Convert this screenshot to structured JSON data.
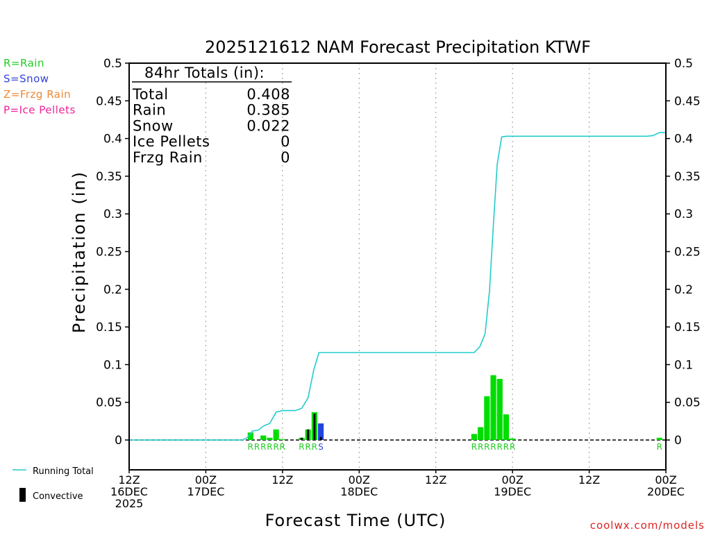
{
  "chart_data": {
    "type": "bar",
    "title": "2025121612 NAM Forecast Precipitation KTWF",
    "ylabel": "Precipitation (in)",
    "xlabel": "Forecast Time (UTC)",
    "ylim": [
      -0.04,
      0.5
    ],
    "xlim_hours": [
      0,
      84
    ],
    "yticks": [
      {
        "value": 0,
        "label": "0"
      },
      {
        "value": 0.05,
        "label": "0.05"
      },
      {
        "value": 0.1,
        "label": "0.1"
      },
      {
        "value": 0.15,
        "label": "0.15"
      },
      {
        "value": 0.2,
        "label": "0.2"
      },
      {
        "value": 0.25,
        "label": "0.25"
      },
      {
        "value": 0.3,
        "label": "0.3"
      },
      {
        "value": 0.35,
        "label": "0.35"
      },
      {
        "value": 0.4,
        "label": "0.4"
      },
      {
        "value": 0.45,
        "label": "0.45"
      },
      {
        "value": 0.5,
        "label": "0.5"
      }
    ],
    "xticks": [
      {
        "hour": 0,
        "lines": [
          "12Z",
          "16DEC",
          "2025"
        ]
      },
      {
        "hour": 12,
        "lines": [
          "00Z",
          "17DEC"
        ]
      },
      {
        "hour": 24,
        "lines": [
          "12Z"
        ]
      },
      {
        "hour": 36,
        "lines": [
          "00Z",
          "18DEC"
        ]
      },
      {
        "hour": 48,
        "lines": [
          "12Z"
        ]
      },
      {
        "hour": 60,
        "lines": [
          "00Z",
          "19DEC"
        ]
      },
      {
        "hour": 72,
        "lines": [
          "12Z"
        ]
      },
      {
        "hour": 84,
        "lines": [
          "00Z",
          "20DEC"
        ]
      }
    ],
    "legend_types": [
      {
        "label": "R=Rain",
        "color": "#22cc22"
      },
      {
        "label": "S=Snow",
        "color": "#3344dd"
      },
      {
        "label": "Z=Frzg Rain",
        "color": "#ee8833"
      },
      {
        "label": "P=Ice Pellets",
        "color": "#ee2299"
      }
    ],
    "legend_bottom": [
      {
        "label": "Running Total",
        "kind": "line",
        "color": "#22cccc"
      },
      {
        "label": "Convective",
        "kind": "bar",
        "color": "#000000"
      }
    ],
    "totals": {
      "heading": "84hr Totals (in):",
      "rows": [
        {
          "label": "Total",
          "value": "0.408"
        },
        {
          "label": "Rain",
          "value": "0.385"
        },
        {
          "label": "Snow",
          "value": "0.022"
        },
        {
          "label": "Ice Pellets",
          "value": "0"
        },
        {
          "label": "Frzg Rain",
          "value": "0"
        }
      ]
    },
    "bars": [
      {
        "hour": 19,
        "type": "rain",
        "value": 0.01,
        "conv": 0
      },
      {
        "hour": 21,
        "type": "rain",
        "value": 0.006,
        "conv": 0
      },
      {
        "hour": 22,
        "type": "rain",
        "value": 0.003,
        "conv": 0
      },
      {
        "hour": 23,
        "type": "rain",
        "value": 0.014,
        "conv": 0
      },
      {
        "hour": 24,
        "type": "rain",
        "value": 0.001,
        "conv": 0
      },
      {
        "hour": 27,
        "type": "rain",
        "value": 0.003,
        "conv": 0.003
      },
      {
        "hour": 28,
        "type": "rain",
        "value": 0.014,
        "conv": 0.014
      },
      {
        "hour": 29,
        "type": "rain",
        "value": 0.037,
        "conv": 0.035
      },
      {
        "hour": 30,
        "type": "snow",
        "value": 0.022,
        "conv": 0.004
      },
      {
        "hour": 54,
        "type": "rain",
        "value": 0.008,
        "conv": 0
      },
      {
        "hour": 55,
        "type": "rain",
        "value": 0.017,
        "conv": 0
      },
      {
        "hour": 56,
        "type": "rain",
        "value": 0.058,
        "conv": 0
      },
      {
        "hour": 57,
        "type": "rain",
        "value": 0.086,
        "conv": 0
      },
      {
        "hour": 58,
        "type": "rain",
        "value": 0.081,
        "conv": 0
      },
      {
        "hour": 59,
        "type": "rain",
        "value": 0.034,
        "conv": 0
      },
      {
        "hour": 60,
        "type": "rain",
        "value": 0.002,
        "conv": 0
      },
      {
        "hour": 83,
        "type": "rain",
        "value": 0.003,
        "conv": 0
      }
    ],
    "type_markers": [
      {
        "hour": 19,
        "text": "R",
        "type": "rain"
      },
      {
        "hour": 20,
        "text": "R",
        "type": "rain"
      },
      {
        "hour": 21,
        "text": "R",
        "type": "rain"
      },
      {
        "hour": 22,
        "text": "R",
        "type": "rain"
      },
      {
        "hour": 23,
        "text": "R",
        "type": "rain"
      },
      {
        "hour": 24,
        "text": "R",
        "type": "rain"
      },
      {
        "hour": 27,
        "text": "R",
        "type": "rain"
      },
      {
        "hour": 28,
        "text": "R",
        "type": "rain"
      },
      {
        "hour": 29,
        "text": "R",
        "type": "rain"
      },
      {
        "hour": 30,
        "text": "S",
        "type": "snow"
      },
      {
        "hour": 54,
        "text": "R",
        "type": "rain"
      },
      {
        "hour": 55,
        "text": "R",
        "type": "rain"
      },
      {
        "hour": 56,
        "text": "R",
        "type": "rain"
      },
      {
        "hour": 57,
        "text": "R",
        "type": "rain"
      },
      {
        "hour": 58,
        "text": "R",
        "type": "rain"
      },
      {
        "hour": 59,
        "text": "R",
        "type": "rain"
      },
      {
        "hour": 60,
        "text": "R",
        "type": "rain"
      },
      {
        "hour": 83,
        "text": "R",
        "type": "rain"
      }
    ],
    "running_total": {
      "x": [
        0,
        17.8,
        18.6,
        19.3,
        20.2,
        21.1,
        22.0,
        23.0,
        24.0,
        25.0,
        26.0,
        27.0,
        28.0,
        28.9,
        29.7,
        30.3,
        31.0,
        32.0,
        40.0,
        48.0,
        53.0,
        54.0,
        54.9,
        55.7,
        56.4,
        57.0,
        57.6,
        58.3,
        59.0,
        60.0,
        70.0,
        78.0,
        81.0,
        82.0,
        83.0,
        84.0
      ],
      "y": [
        0,
        0,
        0.004,
        0.012,
        0.013,
        0.019,
        0.022,
        0.037,
        0.039,
        0.039,
        0.039,
        0.042,
        0.056,
        0.093,
        0.116,
        0.116,
        0.116,
        0.116,
        0.116,
        0.116,
        0.116,
        0.116,
        0.124,
        0.141,
        0.198,
        0.284,
        0.366,
        0.402,
        0.403,
        0.403,
        0.403,
        0.403,
        0.403,
        0.404,
        0.408,
        0.408
      ]
    },
    "colors": {
      "rain": "#00dd00",
      "snow": "#2244dd",
      "convective": "#000000",
      "running_total": "#22cccc",
      "rain_text": "#22cc22",
      "snow_text": "#3344dd"
    }
  },
  "footer": {
    "credit": "coolwx.com/models"
  }
}
